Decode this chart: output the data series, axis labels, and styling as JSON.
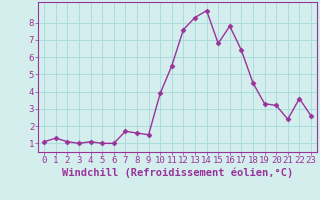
{
  "x": [
    0,
    1,
    2,
    3,
    4,
    5,
    6,
    7,
    8,
    9,
    10,
    11,
    12,
    13,
    14,
    15,
    16,
    17,
    18,
    19,
    20,
    21,
    22,
    23
  ],
  "y": [
    1.1,
    1.3,
    1.1,
    1.0,
    1.1,
    1.0,
    1.0,
    1.7,
    1.6,
    1.5,
    3.9,
    5.5,
    7.6,
    8.3,
    8.7,
    6.8,
    7.8,
    6.4,
    4.5,
    3.3,
    3.2,
    2.4,
    3.6,
    2.6
  ],
  "line_color": "#993399",
  "marker": "D",
  "marker_size": 2.5,
  "bg_color": "#d4eeee",
  "grid_color": "#aadddd",
  "xlabel": "Windchill (Refroidissement éolien,°C)",
  "xlim": [
    -0.5,
    23.5
  ],
  "ylim": [
    0.5,
    9.2
  ],
  "yticks": [
    1,
    2,
    3,
    4,
    5,
    6,
    7,
    8
  ],
  "xticks": [
    0,
    1,
    2,
    3,
    4,
    5,
    6,
    7,
    8,
    9,
    10,
    11,
    12,
    13,
    14,
    15,
    16,
    17,
    18,
    19,
    20,
    21,
    22,
    23
  ],
  "xlabel_fontsize": 7.5,
  "tick_fontsize": 6.5,
  "axis_color": "#993399",
  "spine_color": "#993399",
  "linewidth": 1.0
}
